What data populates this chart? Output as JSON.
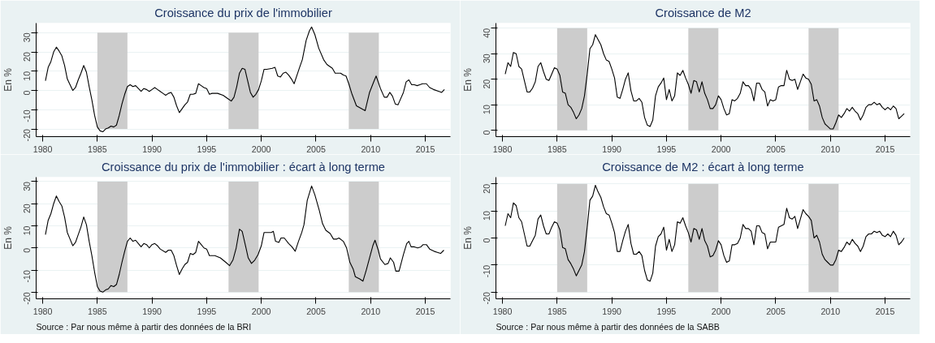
{
  "chart_data": [
    {
      "type": "line",
      "title": "Croissance du prix de l'immobilier",
      "ylabel": "En %",
      "xlim": [
        1979.4,
        2017.3
      ],
      "ylim": [
        -24,
        35
      ],
      "xticks": [
        1980,
        1985,
        1990,
        1995,
        2000,
        2005,
        2010,
        2015
      ],
      "yticks": [
        -20,
        -10,
        0,
        10,
        20,
        30
      ],
      "grid": "y",
      "marker": "none",
      "line_style": "solid",
      "bands": [
        {
          "axis": "x",
          "from": 1985,
          "to": 1987.75,
          "color": "#cccccc"
        },
        {
          "axis": "x",
          "from": 1997,
          "to": 1999.75,
          "color": "#cccccc"
        },
        {
          "axis": "x",
          "from": 2008,
          "to": 2010.75,
          "color": "#cccccc"
        }
      ],
      "series": [
        {
          "color": "#000000",
          "x": [
            1980.25,
            1980.5,
            1980.75,
            1981,
            1981.25,
            1981.5,
            1981.75,
            1982,
            1982.25,
            1982.5,
            1982.75,
            1983,
            1983.25,
            1983.5,
            1983.75,
            1984,
            1984.25,
            1984.5,
            1984.75,
            1985,
            1985.25,
            1985.5,
            1985.75,
            1986,
            1986.25,
            1986.5,
            1986.75,
            1987,
            1987.25,
            1987.5,
            1987.75,
            1988,
            1988.25,
            1988.5,
            1988.75,
            1989,
            1989.25,
            1989.5,
            1989.75,
            1990,
            1990.25,
            1990.5,
            1990.75,
            1991,
            1991.25,
            1991.5,
            1991.75,
            1992,
            1992.25,
            1992.5,
            1992.75,
            1993,
            1993.25,
            1993.5,
            1993.75,
            1994,
            1994.25,
            1994.5,
            1994.75,
            1995,
            1995.25,
            1995.5,
            1996,
            1996.5,
            1997,
            1997.25,
            1997.5,
            1997.75,
            1998,
            1998.25,
            1998.5,
            1998.75,
            1999,
            1999.25,
            1999.5,
            1999.75,
            2000,
            2000.25,
            2000.5,
            2001,
            2001.25,
            2001.5,
            2001.75,
            2002,
            2002.25,
            2002.5,
            2002.75,
            2003,
            2003.5,
            2003.75,
            2004.1,
            2004.4,
            2004.6,
            2004.9,
            2005.25,
            2005.7,
            2006,
            2006.5,
            2006.75,
            2007.25,
            2007.5,
            2007.75,
            2008,
            2008.3,
            2008.7,
            2009.5,
            2009.9,
            2010.25,
            2010.5,
            2010.9,
            2011.25,
            2011.5,
            2011.75,
            2012,
            2012.25,
            2012.5,
            2013,
            2013.25,
            2013.5,
            2013.75,
            2014,
            2014.25,
            2014.5,
            2014.75,
            2015.1,
            2015.4,
            2015.75,
            2016.25,
            2016.5,
            2016.75
          ],
          "values": [
            5,
            12,
            15,
            20,
            22.5,
            20.5,
            18,
            13,
            6,
            3,
            0,
            1.5,
            5.5,
            9,
            13,
            9.5,
            2,
            -5,
            -13,
            -19,
            -21,
            -21.5,
            -20,
            -19.5,
            -18.5,
            -19,
            -18,
            -13,
            -7,
            -2,
            2,
            3,
            2,
            2.5,
            1,
            -0.5,
            1,
            0.5,
            -0.5,
            0.5,
            1.5,
            0.5,
            -0.5,
            -1.5,
            -2.5,
            -1.5,
            -1,
            -3.5,
            -8,
            -11.5,
            -9.5,
            -7.5,
            -6,
            -2,
            -2,
            -1.5,
            3.5,
            2.5,
            1.5,
            1,
            -2,
            -1.5,
            -1.5,
            -2.5,
            -4.5,
            -5.5,
            -3.5,
            2,
            9,
            11.5,
            11,
            5,
            -1,
            -3.5,
            -2,
            0.5,
            5,
            11,
            11,
            11.5,
            12,
            7.5,
            7,
            9,
            9.5,
            8,
            6,
            3.5,
            12,
            16,
            26,
            31,
            33,
            29,
            22,
            16,
            13.5,
            11.5,
            9,
            9,
            8,
            7.5,
            3.5,
            -2,
            -8,
            -10.5,
            -1,
            4,
            7.5,
            1,
            -3.5,
            -3.5,
            -1,
            -3,
            -7,
            -7.5,
            -1,
            4.5,
            5.5,
            3,
            3,
            2.5,
            3,
            3.5,
            3.5,
            1.5,
            0.5,
            -0.5,
            -1,
            0.5
          ]
        }
      ]
    },
    {
      "type": "line",
      "title": "Croissance de M2",
      "ylabel": "En %",
      "xlim": [
        1979.4,
        2017.3
      ],
      "ylim": [
        -2.5,
        42
      ],
      "xticks": [
        1980,
        1985,
        1990,
        1995,
        2000,
        2005,
        2010,
        2015
      ],
      "yticks": [
        0,
        10,
        20,
        30,
        40
      ],
      "grid": "y",
      "marker": "none",
      "line_style": "solid",
      "bands": [
        {
          "axis": "x",
          "from": 1985,
          "to": 1987.75,
          "color": "#cccccc"
        },
        {
          "axis": "x",
          "from": 1997,
          "to": 1999.75,
          "color": "#cccccc"
        },
        {
          "axis": "x",
          "from": 2008,
          "to": 2010.75,
          "color": "#cccccc"
        }
      ],
      "series": [
        {
          "color": "#000000",
          "x": [
            1980.25,
            1980.5,
            1980.75,
            1981,
            1981.25,
            1981.5,
            1981.75,
            1982,
            1982.25,
            1982.5,
            1982.75,
            1983,
            1983.25,
            1983.5,
            1983.75,
            1984,
            1984.25,
            1984.5,
            1984.75,
            1985,
            1985.25,
            1985.5,
            1985.75,
            1986,
            1986.25,
            1986.5,
            1986.75,
            1987,
            1987.25,
            1987.5,
            1987.75,
            1988,
            1988.25,
            1988.5,
            1988.75,
            1989,
            1989.25,
            1989.5,
            1989.75,
            1990,
            1990.25,
            1990.5,
            1990.75,
            1991,
            1991.25,
            1991.5,
            1991.75,
            1992,
            1992.25,
            1992.5,
            1992.75,
            1993,
            1993.25,
            1993.5,
            1993.75,
            1994,
            1994.25,
            1994.5,
            1994.75,
            1995,
            1995.25,
            1995.5,
            1995.75,
            1996,
            1996.25,
            1996.5,
            1996.75,
            1997,
            1997.25,
            1997.5,
            1997.75,
            1998,
            1998.25,
            1998.5,
            1998.75,
            1999,
            1999.25,
            1999.5,
            1999.75,
            2000,
            2000.25,
            2000.5,
            2000.75,
            2001,
            2001.25,
            2001.5,
            2001.75,
            2002,
            2002.25,
            2002.5,
            2002.75,
            2003,
            2003.25,
            2003.5,
            2003.75,
            2004,
            2004.25,
            2004.5,
            2004.75,
            2005,
            2005.25,
            2005.5,
            2005.75,
            2006,
            2006.25,
            2006.5,
            2006.75,
            2007,
            2007.25,
            2007.5,
            2007.75,
            2008,
            2008.25,
            2008.5,
            2008.75,
            2009,
            2009.25,
            2009.5,
            2009.75,
            2010,
            2010.25,
            2010.5,
            2010.75,
            2011,
            2011.25,
            2011.5,
            2011.75,
            2012,
            2012.25,
            2012.5,
            2012.75,
            2013,
            2013.25,
            2013.5,
            2013.75,
            2014,
            2014.25,
            2014.5,
            2014.75,
            2015,
            2015.25,
            2015.5,
            2015.75,
            2016,
            2016.25,
            2016.5,
            2016.75
          ],
          "values": [
            22,
            26.5,
            25,
            30.5,
            30,
            25,
            24,
            19.5,
            15,
            15,
            16.5,
            19,
            25,
            26.5,
            23,
            20,
            19.5,
            22,
            24.5,
            24,
            21.5,
            15,
            14.5,
            10,
            9,
            7,
            4.5,
            6,
            8.5,
            13.5,
            22,
            32,
            33.5,
            37.5,
            35.5,
            33.5,
            30,
            27.5,
            27,
            24,
            20.5,
            13,
            12.5,
            16,
            20,
            22.5,
            15.5,
            11.5,
            11.5,
            12.5,
            11,
            5,
            2,
            1.5,
            4,
            13.5,
            17,
            18.5,
            20.5,
            12,
            16,
            11.5,
            13.5,
            22.5,
            21.5,
            23.5,
            20.5,
            18,
            14.5,
            19.5,
            19,
            15,
            19,
            14.5,
            12,
            8.5,
            8.5,
            10,
            13.5,
            12,
            8.5,
            6,
            6.5,
            12,
            11.5,
            12.5,
            14.5,
            19,
            17.5,
            17.5,
            16,
            11.5,
            18.5,
            18.5,
            16,
            15,
            9.5,
            12,
            11.5,
            12,
            17,
            17.5,
            17.5,
            23.5,
            20,
            19.5,
            20,
            16,
            19,
            22,
            20.5,
            20,
            18,
            11.5,
            12,
            9.5,
            5,
            2.5,
            1.5,
            0.5,
            0.5,
            3,
            6,
            5,
            6.5,
            8.5,
            7.5,
            9,
            7.5,
            6.5,
            4,
            6,
            9,
            10,
            10,
            11,
            10,
            10.5,
            9,
            8,
            9,
            8,
            9.5,
            8.5,
            4.5,
            5.5,
            6.5
          ]
        }
      ]
    },
    {
      "type": "line",
      "title": "Croissance du prix de l'immobilier : écart à long terme",
      "ylabel": "En %",
      "xlim": [
        1979.4,
        2017.3
      ],
      "ylim": [
        -23,
        32
      ],
      "xticks": [
        1980,
        1985,
        1990,
        1995,
        2000,
        2005,
        2010,
        2015
      ],
      "yticks": [
        -20,
        -10,
        0,
        10,
        20,
        30
      ],
      "grid": "y",
      "marker": "none",
      "line_style": "solid",
      "annotations": [
        "Source : Par nous même à partir des données de la BRI"
      ],
      "bands": [
        {
          "axis": "x",
          "from": 1985,
          "to": 1987.75,
          "color": "#cccccc"
        },
        {
          "axis": "x",
          "from": 1997,
          "to": 1999.75,
          "color": "#cccccc"
        },
        {
          "axis": "x",
          "from": 2008,
          "to": 2010.75,
          "color": "#cccccc"
        }
      ],
      "series": [
        {
          "color": "#000000",
          "x": [
            1980.25,
            1980.5,
            1980.75,
            1981,
            1981.25,
            1981.5,
            1981.75,
            1982,
            1982.25,
            1982.5,
            1982.75,
            1983,
            1983.25,
            1983.5,
            1983.75,
            1984,
            1984.25,
            1984.5,
            1984.75,
            1985,
            1985.25,
            1985.5,
            1985.75,
            1986,
            1986.25,
            1986.5,
            1986.75,
            1987,
            1987.25,
            1987.5,
            1987.75,
            1988,
            1988.25,
            1988.5,
            1988.75,
            1989,
            1989.25,
            1989.5,
            1989.75,
            1990,
            1990.25,
            1990.5,
            1990.75,
            1991.25,
            1991.5,
            1991.75,
            1992,
            1992.25,
            1992.5,
            1992.75,
            1993,
            1993.25,
            1993.5,
            1993.75,
            1994,
            1994.25,
            1994.5,
            1994.75,
            1995,
            1995.25,
            1995.75,
            1996.25,
            1996.75,
            1997.1,
            1997.4,
            1997.7,
            1998,
            1998.25,
            1998.6,
            1998.8,
            1999.1,
            1999.4,
            1999.7,
            2000,
            2000.25,
            2000.6,
            2000.9,
            2001.1,
            2001.3,
            2001.6,
            2001.8,
            2002.1,
            2002.5,
            2002.8,
            2003.1,
            2003.4,
            2003.7,
            2003.9,
            2004.2,
            2004.6,
            2004.9,
            2005.3,
            2005.6,
            2005.9,
            2006.3,
            2006.6,
            2006.9,
            2007.1,
            2007.5,
            2007.8,
            2008.1,
            2008.4,
            2008.6,
            2009,
            2009.3,
            2009.6,
            2009.9,
            2010.2,
            2010.4,
            2010.7,
            2010.9,
            2011.3,
            2011.6,
            2011.8,
            2012.1,
            2012.3,
            2012.6,
            2013,
            2013.3,
            2013.5,
            2013.7,
            2014,
            2014.3,
            2014.6,
            2014.8,
            2015.1,
            2015.4,
            2015.8,
            2016.1,
            2016.4,
            2016.7
          ],
          "values": [
            6,
            12.5,
            15.5,
            20,
            23.5,
            21,
            19,
            14,
            7,
            4,
            1,
            2.5,
            6,
            9.5,
            14,
            10.5,
            3,
            -3.5,
            -11,
            -17.5,
            -19.5,
            -20,
            -19,
            -18.5,
            -17,
            -17.5,
            -16.5,
            -12,
            -6.5,
            -1.5,
            3,
            4.5,
            3,
            3.5,
            2,
            0.5,
            2,
            1.5,
            0,
            1.5,
            2,
            1,
            -0.5,
            -2,
            -1,
            -1,
            -3.5,
            -8,
            -12,
            -9.5,
            -7.5,
            -6.5,
            -2.5,
            -3,
            -2,
            3,
            1.5,
            0,
            -0.5,
            -3.5,
            -3.5,
            -4.5,
            -6.5,
            -8,
            -5.5,
            0,
            8.5,
            7.5,
            0,
            -4.5,
            -7,
            -5.5,
            -3,
            1,
            7,
            7,
            7,
            7.5,
            3,
            2.5,
            4.5,
            4.5,
            2,
            0.5,
            -1.5,
            3,
            7,
            10.5,
            21.5,
            28,
            24,
            17,
            11,
            8,
            6.5,
            4,
            4,
            4.5,
            3,
            0,
            -6.5,
            -9.5,
            -13,
            -14,
            -15,
            -10,
            -4.5,
            1,
            3.5,
            -1,
            -5,
            -7.5,
            -7,
            -4.5,
            -6.5,
            -10.5,
            -10.5,
            -3,
            2,
            3,
            0.5,
            0.5,
            0,
            0.5,
            1.5,
            1.5,
            -0.5,
            -1.5,
            -2,
            -2.5,
            -1
          ]
        }
      ]
    },
    {
      "type": "line",
      "title": "Croissance de M2 : écart à long terme",
      "ylabel": "En %",
      "xlim": [
        1979.4,
        2017.3
      ],
      "ylim": [
        -22.5,
        22.5
      ],
      "xticks": [
        1980,
        1985,
        1990,
        1995,
        2000,
        2005,
        2010,
        2015
      ],
      "yticks": [
        -20,
        -10,
        0,
        10,
        20
      ],
      "grid": "y",
      "marker": "none",
      "line_style": "solid",
      "annotations": [
        "Source : Par nous même à partir des données de la SABB"
      ],
      "bands": [
        {
          "axis": "x",
          "from": 1985,
          "to": 1987.75,
          "color": "#cccccc"
        },
        {
          "axis": "x",
          "from": 1997,
          "to": 1999.75,
          "color": "#cccccc"
        },
        {
          "axis": "x",
          "from": 2008,
          "to": 2010.75,
          "color": "#cccccc"
        }
      ],
      "series": [
        {
          "color": "#000000",
          "x": [
            1980.25,
            1980.5,
            1980.75,
            1981,
            1981.25,
            1981.5,
            1981.75,
            1982,
            1982.25,
            1982.5,
            1982.75,
            1983,
            1983.25,
            1983.5,
            1983.75,
            1984,
            1984.25,
            1984.5,
            1984.75,
            1985,
            1985.25,
            1985.5,
            1985.75,
            1986,
            1986.25,
            1986.5,
            1986.75,
            1987,
            1987.25,
            1987.5,
            1987.75,
            1988,
            1988.25,
            1988.5,
            1988.75,
            1989,
            1989.25,
            1989.5,
            1989.75,
            1990,
            1990.25,
            1990.5,
            1990.75,
            1991,
            1991.25,
            1991.5,
            1991.75,
            1992,
            1992.25,
            1992.5,
            1992.75,
            1993,
            1993.25,
            1993.5,
            1993.75,
            1994,
            1994.25,
            1994.5,
            1994.75,
            1995,
            1995.25,
            1995.5,
            1995.75,
            1996,
            1996.25,
            1996.5,
            1996.75,
            1997,
            1997.25,
            1997.5,
            1997.75,
            1998,
            1998.25,
            1998.5,
            1998.75,
            1999,
            1999.25,
            1999.5,
            1999.75,
            2000,
            2000.25,
            2000.5,
            2000.75,
            2001,
            2001.25,
            2001.5,
            2001.75,
            2002,
            2002.25,
            2002.5,
            2002.75,
            2003,
            2003.25,
            2003.5,
            2003.75,
            2004,
            2004.25,
            2004.5,
            2004.75,
            2005,
            2005.25,
            2005.5,
            2005.75,
            2006,
            2006.25,
            2006.5,
            2006.75,
            2007,
            2007.25,
            2007.5,
            2007.75,
            2008,
            2008.25,
            2008.5,
            2008.75,
            2009,
            2009.25,
            2009.5,
            2009.75,
            2010,
            2010.25,
            2010.5,
            2010.75,
            2011,
            2011.25,
            2011.5,
            2011.75,
            2012,
            2012.25,
            2012.5,
            2012.75,
            2013,
            2013.25,
            2013.5,
            2013.75,
            2014,
            2014.25,
            2014.5,
            2014.75,
            2015,
            2015.25,
            2015.5,
            2015.75,
            2016,
            2016.25,
            2016.5,
            2016.75
          ],
          "values": [
            4.5,
            9,
            7.5,
            13,
            12,
            7.5,
            6,
            1.5,
            -3,
            -3,
            -1,
            1,
            7,
            8.5,
            4.5,
            1.5,
            1.5,
            4,
            6,
            5.5,
            3,
            -3.5,
            -4,
            -8,
            -9.5,
            -11.5,
            -14,
            -12,
            -10,
            -5,
            4,
            14,
            15.5,
            19.5,
            17,
            15,
            11.5,
            9,
            8.5,
            5.5,
            2,
            -5,
            -5,
            -1,
            2.5,
            5,
            -2,
            -6,
            -6,
            -5,
            -6.5,
            -12,
            -15.5,
            -16,
            -13,
            -3,
            0.5,
            1.5,
            4,
            -4.5,
            -0.5,
            -5,
            -2.5,
            6,
            5.5,
            7.5,
            4.5,
            2,
            -1.5,
            3.5,
            3,
            -0.5,
            3.5,
            -1,
            -3,
            -7,
            -6.5,
            -4.5,
            -1,
            -2.5,
            -6.5,
            -9,
            -8.5,
            -2.5,
            -2.5,
            -2,
            0,
            5,
            3.5,
            3.5,
            2.5,
            -2.5,
            4.5,
            4.5,
            2,
            1.5,
            -4,
            -1.5,
            -1.5,
            -1.5,
            4,
            4.5,
            5,
            11,
            7.5,
            7,
            8,
            3.5,
            7,
            10.5,
            9,
            8,
            6.5,
            0,
            1,
            -1.5,
            -6,
            -8,
            -9,
            -10,
            -10,
            -8,
            -4.5,
            -5,
            -3.5,
            -1.5,
            -2.5,
            -0.5,
            -2,
            -3,
            -5,
            -3,
            0.5,
            1.5,
            1.5,
            2.5,
            2,
            2.5,
            1,
            0.5,
            1.5,
            0.5,
            2.5,
            1,
            -2.5,
            -1.5,
            0
          ]
        }
      ]
    }
  ]
}
